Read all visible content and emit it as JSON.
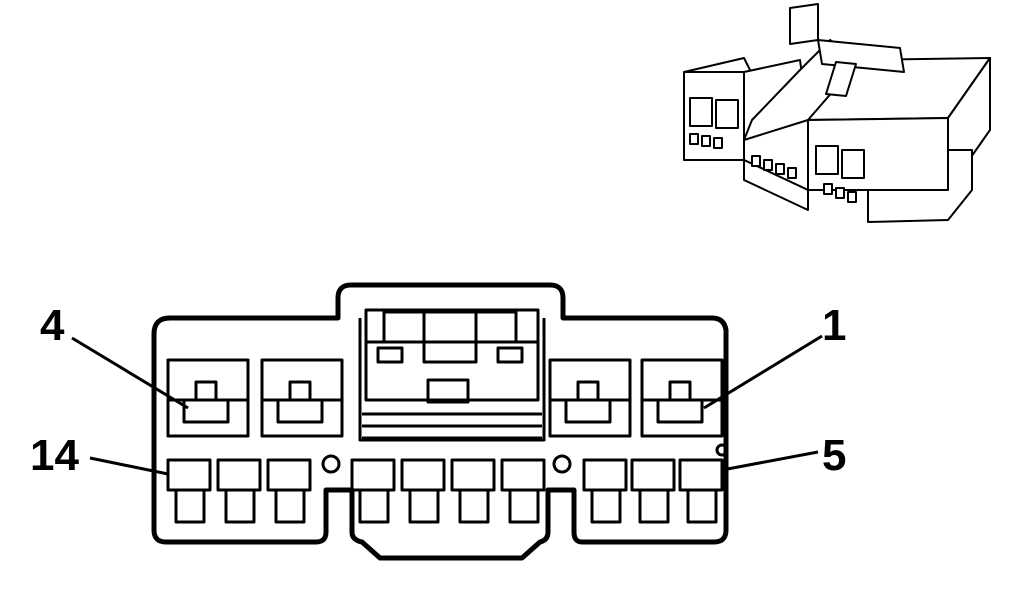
{
  "labels": {
    "pin_4": "4",
    "pin_1": "1",
    "pin_14": "14",
    "pin_5": "5"
  },
  "colors": {
    "ink": "#000000",
    "background": "#ffffff"
  }
}
